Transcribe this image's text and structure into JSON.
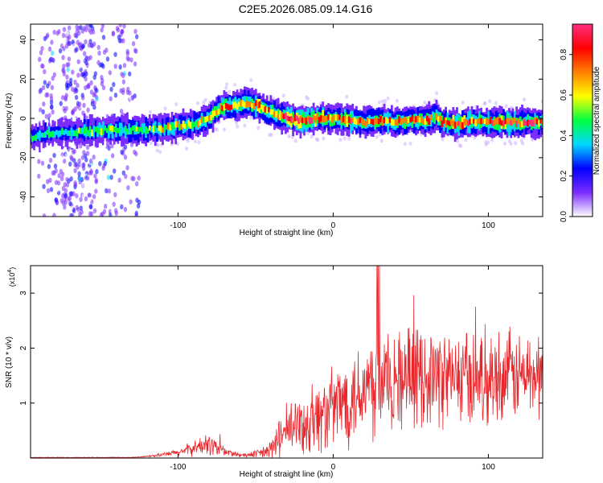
{
  "title": "C2E5.2026.085.09.14.G16",
  "chart_data": [
    {
      "type": "heatmap",
      "xlabel": "Height of straight line (km)",
      "ylabel": "Frequency (Hz)",
      "xlim": [
        -195,
        135
      ],
      "ylim": [
        -50,
        48
      ],
      "x_ticks": [
        -100,
        0,
        100
      ],
      "x_tick_labels": [
        "-100",
        "0",
        "100"
      ],
      "y_ticks": [
        -40,
        -20,
        0,
        20,
        40
      ],
      "y_tick_labels": [
        "-40",
        "-20",
        "0",
        "20",
        "40"
      ],
      "colorbar": {
        "label": "Normalized spectral amplitude",
        "range": [
          0,
          0.95
        ],
        "ticks": [
          0.0,
          0.2,
          0.4,
          0.6,
          0.8
        ],
        "tick_labels": [
          "0.0",
          "0.2",
          "0.4",
          "0.6",
          "0.8"
        ],
        "colors": [
          "#ffffff",
          "#7b2cff",
          "#0000ff",
          "#00d8ff",
          "#00ff40",
          "#ffff00",
          "#ff8000",
          "#ff0000",
          "#ff3080"
        ]
      },
      "ridge": {
        "x": [
          -195,
          -185,
          -175,
          -165,
          -150,
          -140,
          -130,
          -120,
          -110,
          -100,
          -90,
          -80,
          -75,
          -70,
          -60,
          -55,
          -50,
          -45,
          -40,
          -30,
          -20,
          -10,
          0,
          10,
          20,
          30,
          40,
          50,
          60,
          67,
          70,
          80,
          90,
          100,
          110,
          120,
          130,
          135
        ],
        "y": [
          -10,
          -8,
          -7,
          -7,
          -6,
          -6,
          -6,
          -6,
          -5,
          -4,
          -3,
          0,
          4,
          6,
          7,
          8,
          7,
          5,
          3,
          0,
          -1,
          0,
          0,
          -1,
          -2,
          -1,
          -2,
          -1,
          -1,
          1,
          -2,
          -3,
          -2,
          -2,
          -2,
          -2,
          -2,
          -2
        ],
        "amplitude": [
          0.4,
          0.45,
          0.4,
          0.45,
          0.5,
          0.5,
          0.55,
          0.5,
          0.55,
          0.6,
          0.6,
          0.65,
          0.7,
          0.75,
          0.7,
          0.75,
          0.8,
          0.75,
          0.7,
          0.85,
          0.9,
          0.8,
          0.7,
          0.85,
          0.7,
          0.8,
          0.7,
          0.75,
          0.7,
          0.6,
          0.8,
          0.85,
          0.8,
          0.75,
          0.85,
          0.8,
          0.8,
          0.7
        ]
      },
      "noise_band_x": [
        -190,
        -125
      ]
    },
    {
      "type": "line",
      "xlabel": "Height of straight line (km)",
      "ylabel": "SNR (10 * v/v)",
      "y_scale_label": "(x10",
      "y_scale_exponent": "4",
      "xlim": [
        -195,
        135
      ],
      "ylim": [
        0,
        3.5
      ],
      "x_ticks": [
        -100,
        0,
        100
      ],
      "x_tick_labels": [
        "-100",
        "0",
        "100"
      ],
      "y_ticks": [
        1,
        2,
        3
      ],
      "y_tick_labels": [
        "1",
        "2",
        "3"
      ],
      "color": "#e8262b",
      "envelope": {
        "x": [
          -195,
          -130,
          -120,
          -110,
          -100,
          -90,
          -80,
          -75,
          -70,
          -60,
          -50,
          -40,
          -35,
          -30,
          -20,
          -10,
          0,
          10,
          20,
          30,
          40,
          60,
          80,
          100,
          120,
          135
        ],
        "mean": [
          0.01,
          0.01,
          0.03,
          0.06,
          0.1,
          0.18,
          0.25,
          0.2,
          0.12,
          0.05,
          0.06,
          0.15,
          0.35,
          0.5,
          0.6,
          0.75,
          0.9,
          1.1,
          1.3,
          1.4,
          1.45,
          1.5,
          1.45,
          1.5,
          1.5,
          1.5
        ],
        "spread": [
          0.01,
          0.01,
          0.02,
          0.05,
          0.1,
          0.2,
          0.3,
          0.3,
          0.15,
          0.05,
          0.1,
          0.3,
          0.5,
          0.7,
          0.9,
          1.0,
          1.1,
          1.3,
          1.4,
          1.6,
          1.4,
          1.3,
          1.3,
          1.3,
          1.2,
          1.2
        ]
      }
    }
  ]
}
